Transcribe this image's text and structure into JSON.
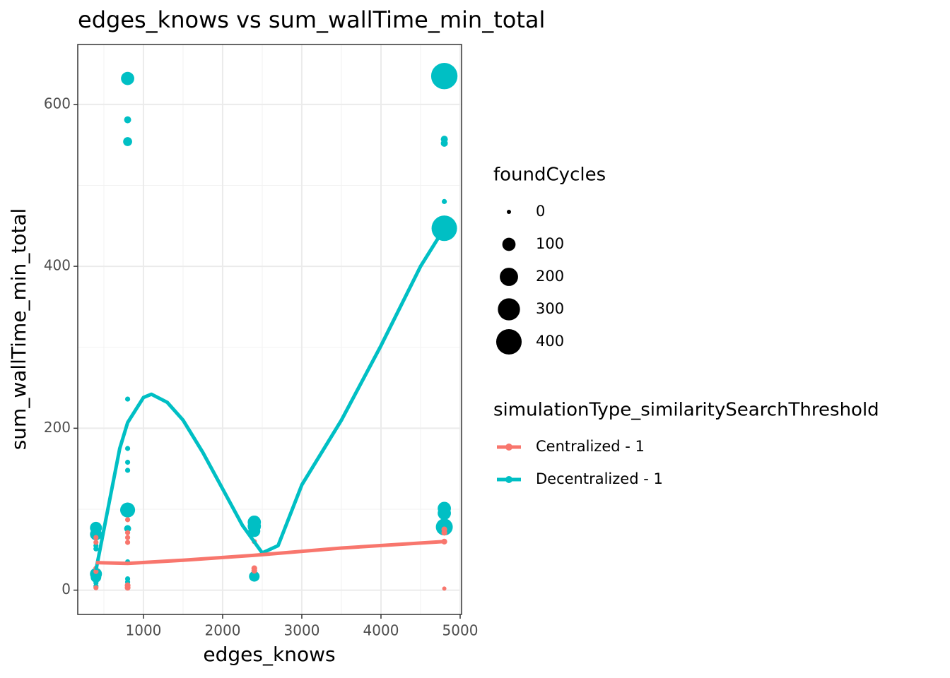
{
  "chart_data": {
    "type": "scatter",
    "title": "edges_knows  vs  sum_wallTime_min_total",
    "x_label": "edges_knows",
    "y_label": "sum_wallTime_min_total",
    "xlim": [
      170,
      5018
    ],
    "ylim": [
      -30,
      674
    ],
    "xticks": [
      1000,
      2000,
      3000,
      4000,
      5000
    ],
    "yticks": [
      0,
      200,
      400,
      600
    ],
    "x_minor_ticks": [
      500,
      1500,
      2500,
      3500,
      4500
    ],
    "y_minor_ticks": [
      100,
      300,
      500
    ],
    "grid": true,
    "size_legend": {
      "title": "foundCycles",
      "breaks": [
        0,
        100,
        200,
        300,
        400
      ]
    },
    "color_legend_title": "simulationType_similaritySearchThreshold",
    "series": [
      {
        "name": "Decentralized - 1",
        "color": "#00bfc4",
        "x": [
          400,
          400,
          400,
          400,
          400,
          400,
          400,
          400,
          800,
          800,
          800,
          800,
          800,
          800,
          800,
          800,
          800,
          800,
          800,
          800,
          2400,
          2400,
          2400,
          2400,
          4800,
          4800,
          4800,
          4800,
          4800,
          4800,
          4800,
          4800,
          4800
        ],
        "values": [
          77,
          69,
          51,
          55,
          20,
          16,
          9,
          5,
          632,
          581,
          554,
          236,
          175,
          158,
          148,
          99,
          76,
          35,
          14,
          10,
          84,
          79,
          73,
          17,
          635,
          557,
          552,
          480,
          447,
          101,
          95,
          78,
          75
        ],
        "sizes": [
          80,
          80,
          5,
          5,
          80,
          60,
          5,
          5,
          100,
          20,
          40,
          5,
          5,
          5,
          5,
          130,
          20,
          5,
          5,
          5,
          100,
          100,
          80,
          60,
          430,
          20,
          20,
          5,
          400,
          100,
          100,
          170,
          60
        ],
        "smooth_x": [
          400,
          500,
          600,
          700,
          800,
          1000,
          1100,
          1300,
          1500,
          1750,
          2000,
          2250,
          2500,
          2700,
          3000,
          3500,
          4000,
          4500,
          4800
        ],
        "smooth_y": [
          25,
          75,
          125,
          175,
          207,
          238,
          242,
          232,
          210,
          170,
          125,
          80,
          46,
          55,
          130,
          210,
          302,
          400,
          447
        ]
      },
      {
        "name": "Centralized - 1",
        "color": "#f8766d",
        "x": [
          400,
          400,
          400,
          400,
          400,
          800,
          800,
          800,
          800,
          800,
          800,
          2400,
          2400,
          2400,
          4800,
          4800,
          4800,
          4800
        ],
        "values": [
          65,
          59,
          27,
          23,
          3,
          87,
          71,
          65,
          59,
          6,
          3,
          60,
          27,
          24,
          75,
          71,
          60,
          2
        ],
        "sizes": [
          5,
          5,
          5,
          5,
          5,
          5,
          5,
          5,
          5,
          10,
          10,
          5,
          10,
          10,
          10,
          10,
          10,
          0
        ],
        "smooth_x": [
          400,
          800,
          1500,
          2400,
          3500,
          4800
        ],
        "smooth_y": [
          34,
          33,
          37,
          43,
          52,
          60
        ]
      }
    ]
  }
}
